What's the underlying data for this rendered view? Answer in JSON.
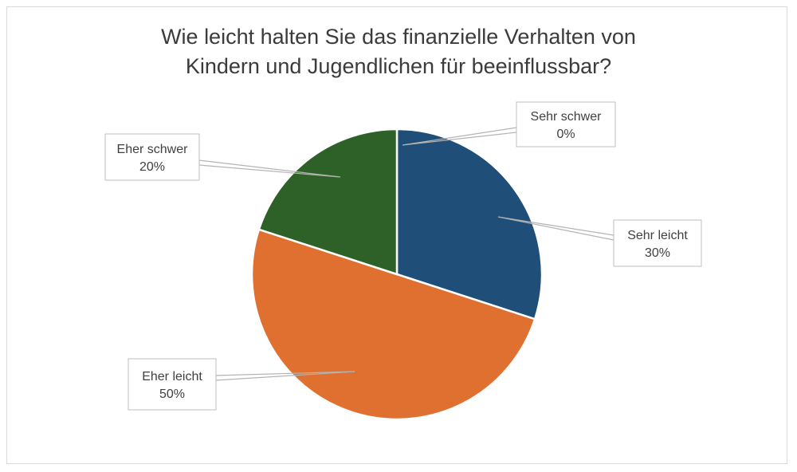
{
  "chart_data": {
    "type": "pie",
    "title_lines": [
      "Wie leicht halten Sie das finanzielle Verhalten von",
      "Kindern und Jugendlichen für beeinflussbar?"
    ],
    "slices": [
      {
        "label": "Sehr schwer",
        "value": 0,
        "value_label": "0%",
        "color": "#1f4e79"
      },
      {
        "label": "Sehr leicht",
        "value": 30,
        "value_label": "30%",
        "color": "#1f4e79"
      },
      {
        "label": "Eher leicht",
        "value": 50,
        "value_label": "50%",
        "color": "#e07030"
      },
      {
        "label": "Eher schwer",
        "value": 20,
        "value_label": "20%",
        "color": "#2e6128"
      }
    ],
    "start_angle_deg": 0,
    "direction": "clockwise",
    "legend": "none",
    "data_labels": "callouts"
  }
}
